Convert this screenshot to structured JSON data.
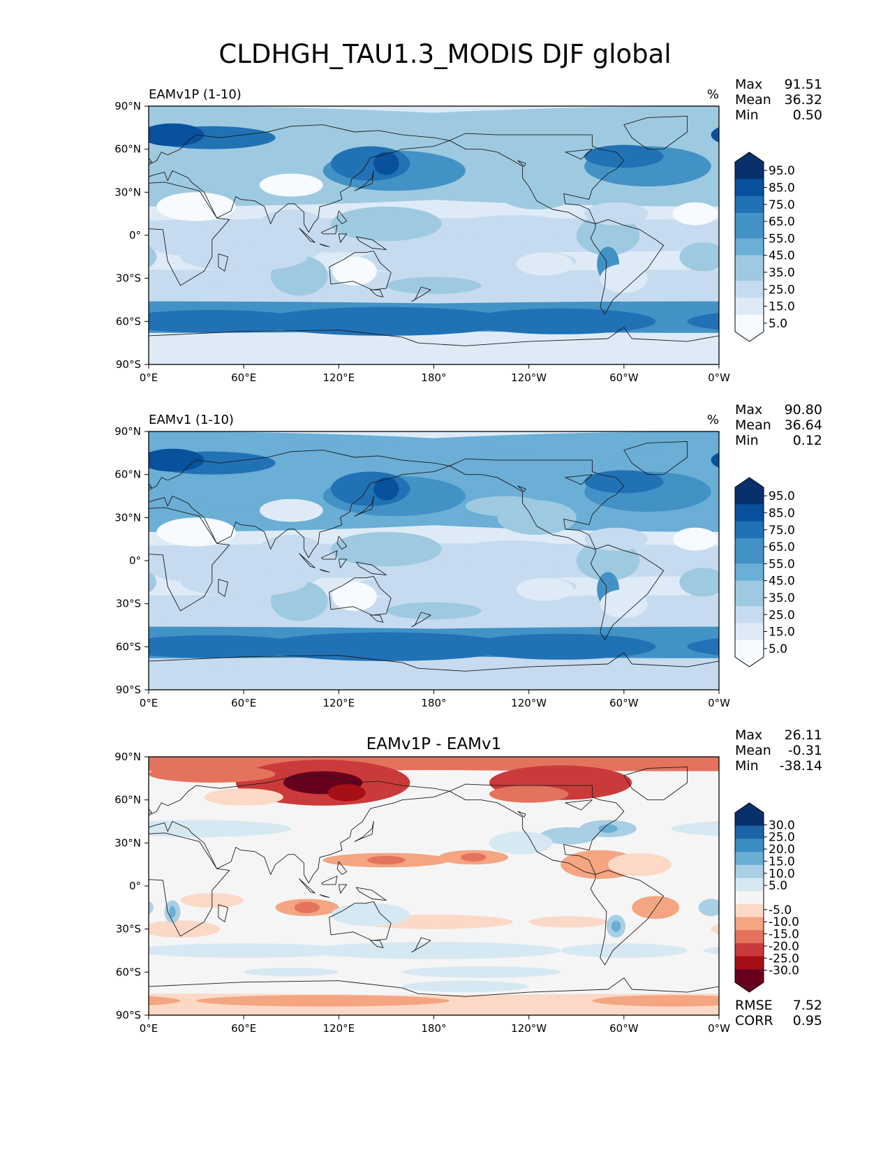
{
  "figure": {
    "title": "CLDHGH_TAU1.3_MODIS DJF global"
  },
  "axes": {
    "x_ticks": [
      "0°E",
      "60°E",
      "120°E",
      "180°",
      "120°W",
      "60°W",
      "0°W"
    ],
    "y_ticks": [
      "90°N",
      "60°N",
      "30°N",
      "0°",
      "30°S",
      "60°S",
      "90°S"
    ]
  },
  "chart_data": [
    {
      "type": "heatmap",
      "projection": "cylindrical lon 0-360, lat -90-90",
      "title_left": "EAMv1P (1-10)",
      "units": "%",
      "stats": [
        {
          "label": "Max",
          "value": "91.51"
        },
        {
          "label": "Mean",
          "value": "36.32"
        },
        {
          "label": "Min",
          "value": "0.50"
        }
      ],
      "colormap": "Blues",
      "colorbar_levels": [
        0,
        5,
        10,
        15,
        20,
        25,
        30,
        35,
        40,
        45,
        50,
        55,
        60,
        65,
        70,
        75,
        80,
        85,
        90,
        95,
        100
      ],
      "colorbar_ticks": [
        "95.0",
        "85.0",
        "75.0",
        "65.0",
        "55.0",
        "45.0",
        "35.0",
        "25.0",
        "15.0",
        "5.0"
      ],
      "colors": [
        "#f7fbff",
        "#deebf7",
        "#c6dbef",
        "#9ecae1",
        "#6baed6",
        "#4292c6",
        "#2171b5",
        "#08519c",
        "#08306b"
      ],
      "extend": "both"
    },
    {
      "type": "heatmap",
      "projection": "cylindrical lon 0-360, lat -90-90",
      "title_left": "EAMv1 (1-10)",
      "units": "%",
      "stats": [
        {
          "label": "Max",
          "value": "90.80"
        },
        {
          "label": "Mean",
          "value": "36.64"
        },
        {
          "label": "Min",
          "value": "0.12"
        }
      ],
      "colormap": "Blues",
      "colorbar_levels": [
        0,
        5,
        10,
        15,
        20,
        25,
        30,
        35,
        40,
        45,
        50,
        55,
        60,
        65,
        70,
        75,
        80,
        85,
        90,
        95,
        100
      ],
      "colorbar_ticks": [
        "95.0",
        "85.0",
        "75.0",
        "65.0",
        "55.0",
        "45.0",
        "35.0",
        "25.0",
        "15.0",
        "5.0"
      ],
      "colors": [
        "#f7fbff",
        "#deebf7",
        "#c6dbef",
        "#9ecae1",
        "#6baed6",
        "#4292c6",
        "#2171b5",
        "#08519c",
        "#08306b"
      ],
      "extend": "both"
    },
    {
      "type": "heatmap",
      "projection": "cylindrical lon 0-360, lat -90-90",
      "title_center": "EAMv1P - EAMv1",
      "stats": [
        {
          "label": "Max",
          "value": "26.11"
        },
        {
          "label": "Mean",
          "value": "-0.31"
        },
        {
          "label": "Min",
          "value": "-38.14"
        }
      ],
      "extra_stats": [
        {
          "label": "RMSE",
          "value": "7.52"
        },
        {
          "label": "CORR",
          "value": "0.95"
        }
      ],
      "colormap": "RdBu",
      "colorbar_levels": [
        -35,
        -30,
        -25,
        -20,
        -15,
        -10,
        -5,
        5,
        10,
        15,
        20,
        25,
        30,
        35
      ],
      "colorbar_ticks": [
        "30.0",
        "25.0",
        "20.0",
        "15.0",
        "10.0",
        "5.0",
        "-5.0",
        "-10.0",
        "-15.0",
        "-20.0",
        "-25.0",
        "-30.0"
      ],
      "colors": [
        "#67001f",
        "#a50f15",
        "#cb3a3a",
        "#e4735e",
        "#f4a582",
        "#fbd9c6",
        "#f5f5f5",
        "#d6e8f2",
        "#a8cfe4",
        "#6aaed3",
        "#3b8cc2",
        "#1d63a8",
        "#08306b"
      ],
      "extend": "both"
    }
  ]
}
